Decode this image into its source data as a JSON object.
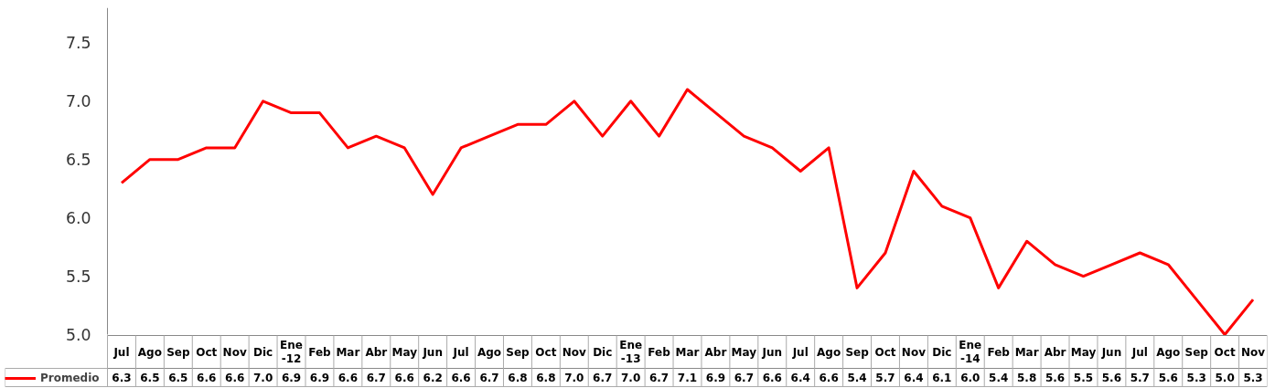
{
  "chart_data": {
    "type": "line",
    "categories": [
      "Jul",
      "Ago",
      "Sep",
      "Oct",
      "Nov",
      "Dic",
      "Ene\n-12",
      "Feb",
      "Mar",
      "Abr",
      "May",
      "Jun",
      "Jul",
      "Ago",
      "Sep",
      "Oct",
      "Nov",
      "Dic",
      "Ene\n-13",
      "Feb",
      "Mar",
      "Abr",
      "May",
      "Jun",
      "Jul",
      "Ago",
      "Sep",
      "Oct",
      "Nov",
      "Dic",
      "Ene\n-14",
      "Feb",
      "Mar",
      "Abr",
      "May",
      "Jun",
      "Jul",
      "Ago",
      "Sep",
      "Oct",
      "Nov"
    ],
    "series": [
      {
        "name": "Promedio",
        "color": "#ff0000",
        "values": [
          6.3,
          6.5,
          6.5,
          6.6,
          6.6,
          7.0,
          6.9,
          6.9,
          6.6,
          6.7,
          6.6,
          6.2,
          6.6,
          6.7,
          6.8,
          6.8,
          7.0,
          6.7,
          7.0,
          6.7,
          7.1,
          6.9,
          6.7,
          6.6,
          6.4,
          6.6,
          5.4,
          5.7,
          6.4,
          6.1,
          6.0,
          5.4,
          5.8,
          5.6,
          5.5,
          5.6,
          5.7,
          5.6,
          5.3,
          5.0,
          5.3
        ],
        "value_labels": [
          "6.3",
          "6.5",
          "6.5",
          "6.6",
          "6.6",
          "7.0",
          "6.9",
          "6.9",
          "6.6",
          "6.7",
          "6.6",
          "6.2",
          "6.6",
          "6.7",
          "6.8",
          "6.8",
          "7.0",
          "6.7",
          "7.0",
          "6.7",
          "7.1",
          "6.9",
          "6.7",
          "6.6",
          "6.4",
          "6.6",
          "5.4",
          "5.7",
          "6.4",
          "6.1",
          "6.0",
          "5.4",
          "5.8",
          "5.6",
          "5.5",
          "5.6",
          "5.7",
          "5.6",
          "5.3",
          "5.0",
          "5.3"
        ]
      }
    ],
    "ylim": [
      5.0,
      7.8
    ],
    "yticks": [
      {
        "value": 5.0,
        "label": "5.0"
      },
      {
        "value": 5.5,
        "label": "5.5"
      },
      {
        "value": 6.0,
        "label": "6.0"
      },
      {
        "value": 6.5,
        "label": "6.5"
      },
      {
        "value": 7.0,
        "label": "7.0"
      },
      {
        "value": 7.5,
        "label": "7.5"
      }
    ],
    "data_labels": true,
    "grid": false,
    "legend": "bottom",
    "marker": "none",
    "line_style": "solid"
  }
}
